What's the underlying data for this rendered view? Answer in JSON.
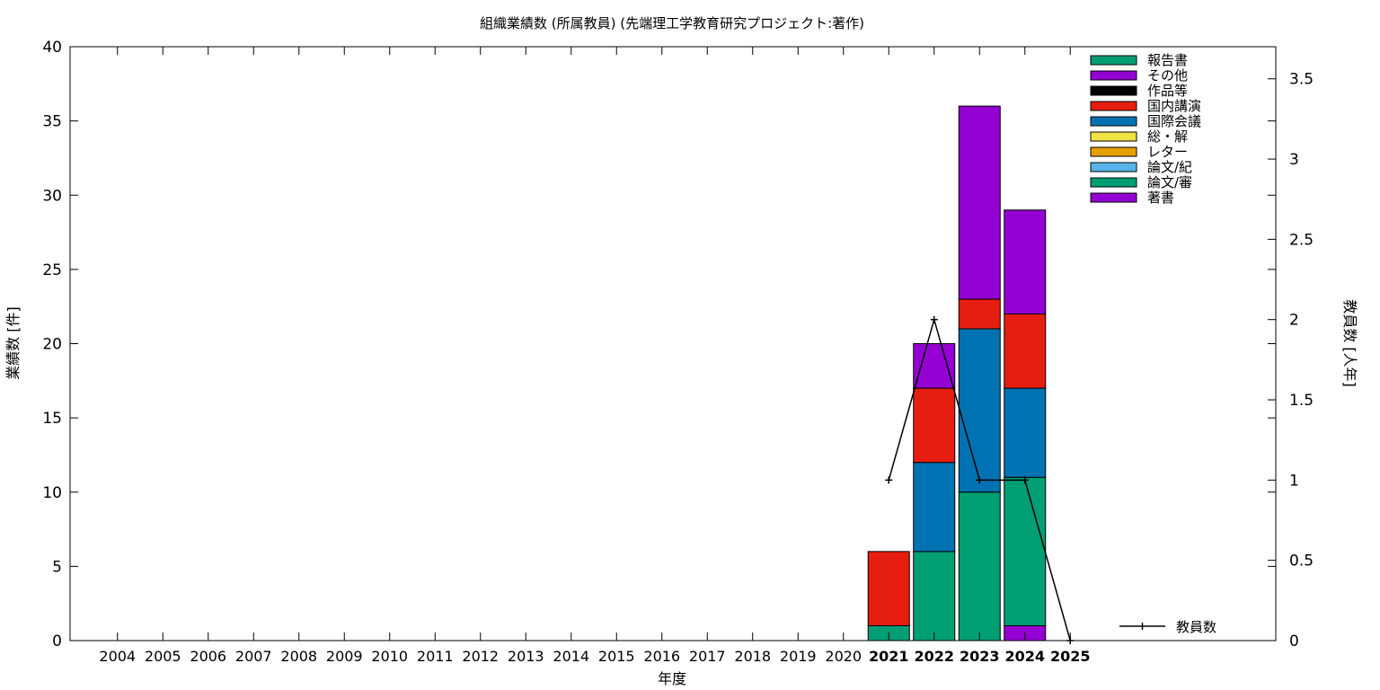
{
  "chart_data": {
    "type": "bar",
    "stacked": true,
    "title": "組織業績数 (所属教員) (先端理工学教育研究プロジェクト:著作)",
    "xlabel": "年度",
    "ylabel": "業績数 [件]",
    "y2label": "教員数 [人年]",
    "ylim": [
      0,
      40
    ],
    "y2lim": [
      0,
      3.7
    ],
    "yticks": [
      "0",
      "5",
      "10",
      "15",
      "20",
      "25",
      "30",
      "35",
      "40"
    ],
    "y2ticks": [
      "0",
      "0.5",
      "1",
      "1.5",
      "2",
      "2.5",
      "3",
      "3.5"
    ],
    "categories": [
      "2004",
      "2005",
      "2006",
      "2007",
      "2008",
      "2009",
      "2010",
      "2011",
      "2012",
      "2013",
      "2014",
      "2015",
      "2016",
      "2017",
      "2018",
      "2019",
      "2020",
      "2021",
      "2022",
      "2023",
      "2024",
      "2025"
    ],
    "highlight_categories": [
      "2021",
      "2022",
      "2023",
      "2024",
      "2025"
    ],
    "legend_position": "top-right",
    "grid": false,
    "series": [
      {
        "name": "著書",
        "color": "#9400d3",
        "values": [
          0,
          0,
          0,
          0,
          0,
          0,
          0,
          0,
          0,
          0,
          0,
          0,
          0,
          0,
          0,
          0,
          0,
          0,
          0,
          0,
          1,
          0
        ]
      },
      {
        "name": "論文/審",
        "color": "#009e73",
        "values": [
          0,
          0,
          0,
          0,
          0,
          0,
          0,
          0,
          0,
          0,
          0,
          0,
          0,
          0,
          0,
          0,
          0,
          1,
          6,
          10,
          10,
          0
        ]
      },
      {
        "name": "論文/紀",
        "color": "#56b4e9",
        "values": [
          0,
          0,
          0,
          0,
          0,
          0,
          0,
          0,
          0,
          0,
          0,
          0,
          0,
          0,
          0,
          0,
          0,
          0,
          0,
          0,
          0,
          0
        ]
      },
      {
        "name": "レター",
        "color": "#e69f00",
        "values": [
          0,
          0,
          0,
          0,
          0,
          0,
          0,
          0,
          0,
          0,
          0,
          0,
          0,
          0,
          0,
          0,
          0,
          0,
          0,
          0,
          0,
          0
        ]
      },
      {
        "name": "総・解",
        "color": "#f0e442",
        "values": [
          0,
          0,
          0,
          0,
          0,
          0,
          0,
          0,
          0,
          0,
          0,
          0,
          0,
          0,
          0,
          0,
          0,
          0,
          0,
          0,
          0,
          0
        ]
      },
      {
        "name": "国際会議",
        "color": "#0072b2",
        "values": [
          0,
          0,
          0,
          0,
          0,
          0,
          0,
          0,
          0,
          0,
          0,
          0,
          0,
          0,
          0,
          0,
          0,
          0,
          6,
          11,
          6,
          0
        ]
      },
      {
        "name": "国内講演",
        "color": "#e51e10",
        "values": [
          0,
          0,
          0,
          0,
          0,
          0,
          0,
          0,
          0,
          0,
          0,
          0,
          0,
          0,
          0,
          0,
          0,
          5,
          5,
          2,
          5,
          0
        ]
      },
      {
        "name": "作品等",
        "color": "#000000",
        "values": [
          0,
          0,
          0,
          0,
          0,
          0,
          0,
          0,
          0,
          0,
          0,
          0,
          0,
          0,
          0,
          0,
          0,
          0,
          0,
          0,
          0,
          0
        ]
      },
      {
        "name": "その他",
        "color": "#9400d3",
        "values": [
          0,
          0,
          0,
          0,
          0,
          0,
          0,
          0,
          0,
          0,
          0,
          0,
          0,
          0,
          0,
          0,
          0,
          0,
          3,
          13,
          7,
          0
        ]
      },
      {
        "name": "報告書",
        "color": "#009e73",
        "values": [
          0,
          0,
          0,
          0,
          0,
          0,
          0,
          0,
          0,
          0,
          0,
          0,
          0,
          0,
          0,
          0,
          0,
          0,
          0,
          0,
          0,
          0
        ]
      }
    ],
    "line_series": {
      "name": "教員数",
      "axis": "y2",
      "color": "#000000",
      "points": [
        {
          "x": "2021",
          "y": 1
        },
        {
          "x": "2022",
          "y": 2
        },
        {
          "x": "2023",
          "y": 1
        },
        {
          "x": "2024",
          "y": 1
        },
        {
          "x": "2025",
          "y": 0
        }
      ]
    }
  }
}
